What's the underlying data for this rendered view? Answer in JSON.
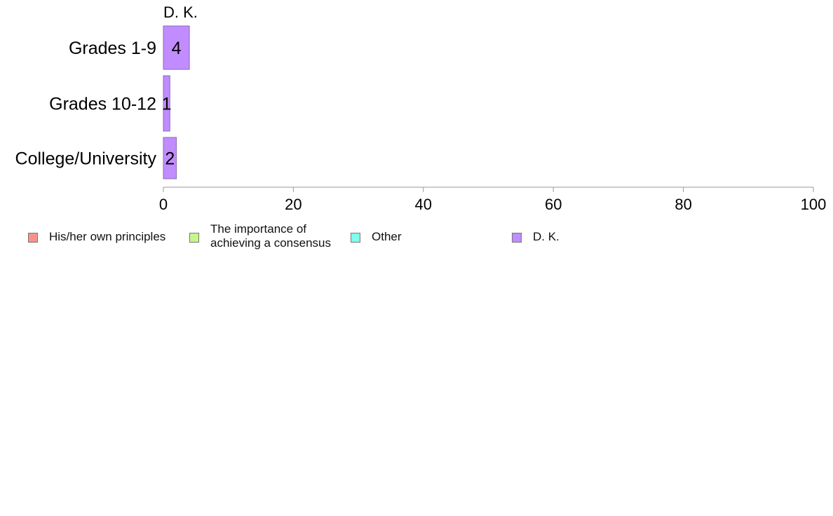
{
  "chart_data": {
    "type": "bar",
    "orientation": "horizontal",
    "facet_title": "D. K.",
    "categories": [
      "Grades 1-9",
      "Grades 10-12",
      "College/University"
    ],
    "series": [
      {
        "name": "D. K.",
        "values": [
          4,
          1,
          2
        ],
        "color": "#c08cff"
      }
    ],
    "xlim": [
      0,
      100
    ],
    "xticks": [
      0,
      20,
      40,
      60,
      80,
      100
    ],
    "data_labels": [
      "4",
      "1",
      "2"
    ],
    "grid": false,
    "legend_placement": "bottom-left"
  },
  "legend": {
    "items": [
      {
        "label_lines": [
          "His/her own principles"
        ],
        "color": "#f8918a"
      },
      {
        "label_lines": [
          "The importance of",
          "achieving a consensus"
        ],
        "color": "#c5f78a"
      },
      {
        "label_lines": [
          "Other"
        ],
        "color": "#80ffee"
      },
      {
        "label_lines": [
          "D. K."
        ],
        "color": "#c08cff"
      }
    ]
  }
}
